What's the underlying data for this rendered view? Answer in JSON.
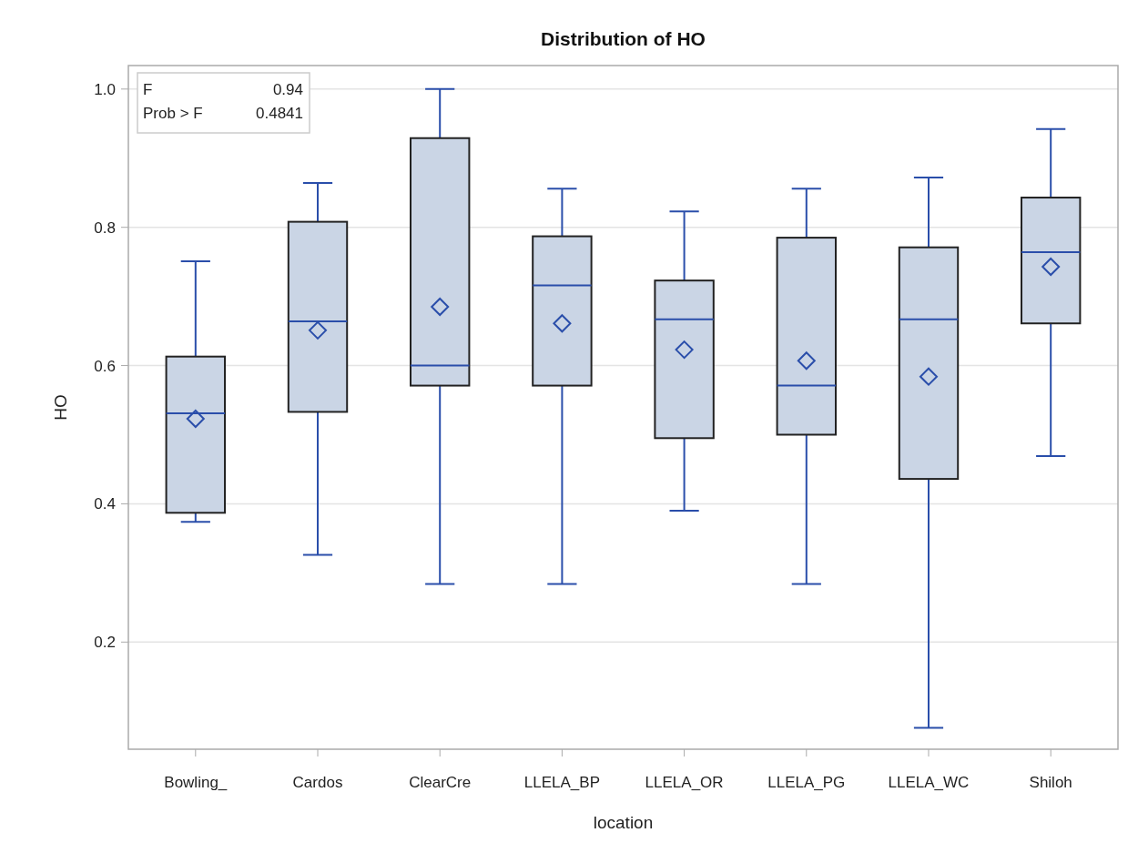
{
  "chart_data": {
    "type": "box",
    "title": "Distribution of HO",
    "xlabel": "location",
    "ylabel": "HO",
    "categories": [
      "Bowling_",
      "Cardos",
      "ClearCre",
      "LLELA_BP",
      "LLELA_OR",
      "LLELA_PG",
      "LLELA_WC",
      "Shiloh"
    ],
    "color": "#cad5e5",
    "boxes": [
      {
        "low": 0.374,
        "q1": 0.387,
        "median": 0.531,
        "q3": 0.613,
        "high": 0.751,
        "mean": 0.523
      },
      {
        "low": 0.326,
        "q1": 0.533,
        "median": 0.664,
        "q3": 0.808,
        "high": 0.864,
        "mean": 0.651
      },
      {
        "low": 0.284,
        "q1": 0.571,
        "median": 0.6,
        "q3": 0.929,
        "high": 1.0,
        "mean": 0.685
      },
      {
        "low": 0.284,
        "q1": 0.571,
        "median": 0.716,
        "q3": 0.787,
        "high": 0.856,
        "mean": 0.661
      },
      {
        "low": 0.39,
        "q1": 0.495,
        "median": 0.667,
        "q3": 0.723,
        "high": 0.823,
        "mean": 0.623
      },
      {
        "low": 0.284,
        "q1": 0.5,
        "median": 0.571,
        "q3": 0.785,
        "high": 0.856,
        "mean": 0.607
      },
      {
        "low": 0.076,
        "q1": 0.436,
        "median": 0.667,
        "q3": 0.771,
        "high": 0.872,
        "mean": 0.584
      },
      {
        "low": 0.469,
        "q1": 0.661,
        "median": 0.764,
        "q3": 0.843,
        "high": 0.942,
        "mean": 0.743
      }
    ],
    "ylim": [
      0.045,
      1.034
    ],
    "yticks": [
      0.2,
      0.4,
      0.6,
      0.8,
      {
        "value": 1.0,
        "label": "1.0"
      }
    ],
    "grid": "y",
    "marker": "diamond",
    "annotations": [
      "F",
      "0.94",
      "Prob > F",
      "0.4841"
    ]
  }
}
